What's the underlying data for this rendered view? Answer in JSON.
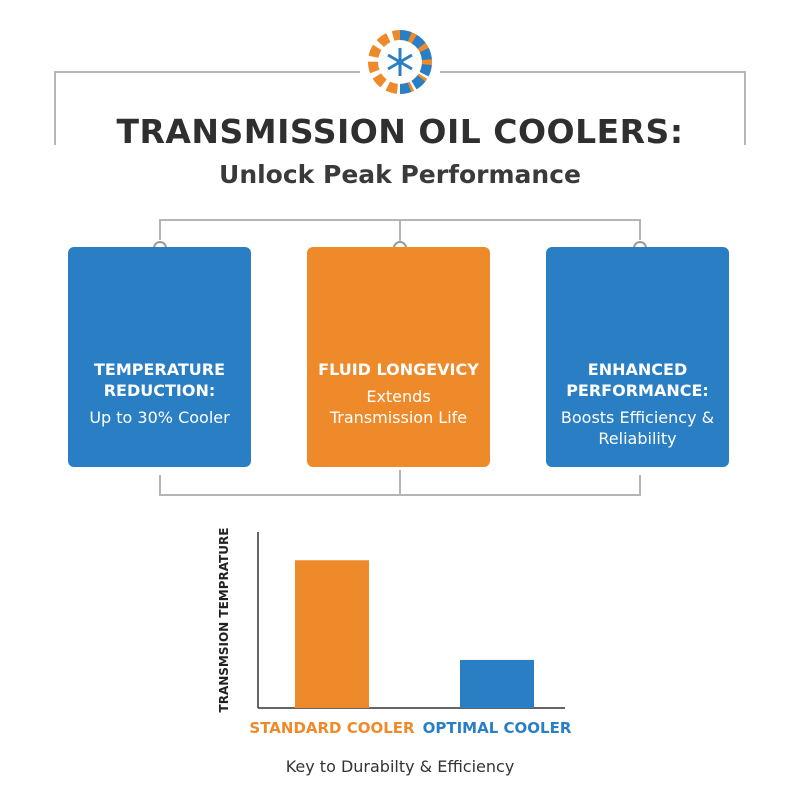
{
  "header": {
    "title": "TRANSMISSION OIL COOLERS:",
    "subtitle": "Unlock Peak Performance"
  },
  "cards": [
    {
      "title": "TEMPERATURE REDUCTION:",
      "text": "Up to 30% Cooler",
      "color": "#2a7fc4"
    },
    {
      "title": "FLUID LONGEVICY",
      "text": "Extends Transmission Life",
      "color": "#ee8a2a"
    },
    {
      "title": "ENHANCED PERFORMANCE:",
      "text": "Boosts Efficiency & Reliability",
      "color": "#2a7fc4"
    }
  ],
  "chart_data": {
    "type": "bar",
    "y_label": "TRANSMSION TEMPRATURE",
    "categories": [
      "STANDARD COOLER",
      "OPTIMAL COOLER"
    ],
    "values": [
      83,
      27
    ],
    "colors": [
      "#ee8a2a",
      "#2a7fc4"
    ],
    "ylim": [
      0,
      100
    ]
  },
  "footer": {
    "caption": "Key to Durabilty & Efficiency"
  }
}
